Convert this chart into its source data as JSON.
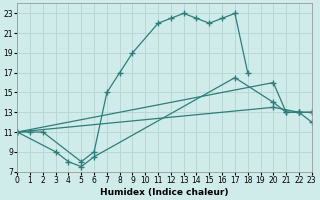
{
  "xlabel": "Humidex (Indice chaleur)",
  "bg_color": "#d0ecea",
  "grid_color": "#b8d8d6",
  "line_color": "#2e7d7a",
  "xlim": [
    0,
    23
  ],
  "ylim": [
    7,
    24
  ],
  "xtick_labels": [
    "0",
    "1",
    "2",
    "3",
    "4",
    "5",
    "6",
    "7",
    "8",
    "9",
    "10",
    "11",
    "12",
    "13",
    "14",
    "15",
    "16",
    "17",
    "18",
    "19",
    "20",
    "21",
    "22",
    "23"
  ],
  "ytick_vals": [
    7,
    9,
    11,
    13,
    15,
    17,
    19,
    21,
    23
  ],
  "curves": [
    {
      "x": [
        0,
        1,
        2,
        5,
        6,
        7,
        8,
        9,
        11,
        12,
        13,
        14,
        15,
        16,
        17,
        18
      ],
      "y": [
        11,
        11,
        11,
        8.0,
        9.0,
        15,
        17,
        19,
        22,
        22.5,
        23,
        22.5,
        22,
        22.5,
        23,
        17
      ]
    },
    {
      "comment": "curve 2: from 11 at x=0, dips at x=3 to 9, x=4 to 8, x=5 to 7.5, then goes up through x=6=8.5, reaches x=17=16.5, x=20=14, x=21=13, x=22=13, x=23=13",
      "x": [
        0,
        3,
        4,
        5,
        6,
        17,
        20,
        21,
        22,
        23
      ],
      "y": [
        11,
        9.0,
        8.0,
        7.5,
        8.5,
        16.5,
        14,
        13,
        13,
        13
      ]
    },
    {
      "comment": "curve 3: nearly straight from 11 at x=0 to ~16 at x=20, x=21=13, x=22=13, x=23=13",
      "x": [
        0,
        20,
        21,
        22,
        23
      ],
      "y": [
        11,
        16,
        13,
        13,
        13
      ]
    },
    {
      "comment": "curve 4: very gradual from 11 at x=0, x=20=13.5, x=21=13, x=22=13, x=23=12",
      "x": [
        0,
        20,
        22,
        23
      ],
      "y": [
        11,
        13.5,
        13,
        12
      ]
    }
  ]
}
